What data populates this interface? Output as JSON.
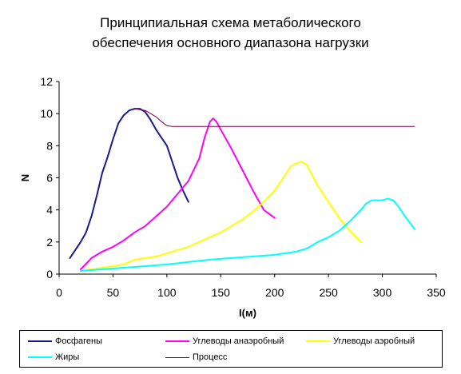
{
  "chart_data": {
    "type": "line",
    "title": [
      "Принципиальная схема метаболического",
      "обеспечения основного диапазона нагрузки"
    ],
    "xlabel": "I(м)",
    "ylabel": "N",
    "xlim": [
      0,
      350
    ],
    "ylim": [
      0,
      12
    ],
    "xticks": [
      0,
      50,
      100,
      150,
      200,
      250,
      300,
      350
    ],
    "yticks": [
      0,
      2,
      4,
      6,
      8,
      10,
      12
    ],
    "grid": false,
    "legend_position": "bottom",
    "series": [
      {
        "name": "Фосфагены",
        "color": "#1A1A8C",
        "width": 2,
        "x": [
          10,
          15,
          20,
          25,
          30,
          35,
          40,
          45,
          50,
          55,
          60,
          65,
          70,
          75,
          80,
          85,
          90,
          95,
          100,
          105,
          110,
          115,
          120
        ],
        "y": [
          1.0,
          1.5,
          2.0,
          2.6,
          3.6,
          4.9,
          6.3,
          7.3,
          8.4,
          9.4,
          9.9,
          10.2,
          10.3,
          10.3,
          10.1,
          9.6,
          9.0,
          8.5,
          8.0,
          7.0,
          6.0,
          5.2,
          4.5
        ]
      },
      {
        "name": "Углеводы анаэробный",
        "color": "#FF00FF",
        "width": 2,
        "x": [
          20,
          30,
          40,
          50,
          60,
          70,
          80,
          90,
          100,
          110,
          120,
          130,
          135,
          140,
          143,
          146,
          150,
          160,
          170,
          180,
          190,
          200
        ],
        "y": [
          0.3,
          1.0,
          1.4,
          1.7,
          2.1,
          2.6,
          3.0,
          3.6,
          4.2,
          5.0,
          5.8,
          7.2,
          8.5,
          9.5,
          9.7,
          9.5,
          9.0,
          7.8,
          6.5,
          5.2,
          4.0,
          3.5
        ]
      },
      {
        "name": "Углеводы аэробный",
        "color": "#FFFF00",
        "width": 2,
        "x": [
          20,
          30,
          40,
          50,
          60,
          70,
          80,
          90,
          100,
          110,
          120,
          130,
          140,
          150,
          160,
          170,
          180,
          190,
          200,
          210,
          215,
          220,
          225,
          230,
          240,
          250,
          260,
          270,
          280
        ],
        "y": [
          0.2,
          0.3,
          0.4,
          0.5,
          0.6,
          0.9,
          1.0,
          1.1,
          1.3,
          1.5,
          1.7,
          2.0,
          2.3,
          2.6,
          3.0,
          3.4,
          3.9,
          4.5,
          5.2,
          6.2,
          6.7,
          6.9,
          7.0,
          6.8,
          5.5,
          4.5,
          3.5,
          2.7,
          2.0
        ]
      },
      {
        "name": "Жиры",
        "color": "#00FFFF",
        "width": 2,
        "x": [
          20,
          40,
          60,
          80,
          100,
          120,
          140,
          160,
          180,
          200,
          220,
          230,
          240,
          250,
          260,
          270,
          280,
          285,
          290,
          295,
          300,
          305,
          310,
          315,
          320,
          330
        ],
        "y": [
          0.2,
          0.3,
          0.4,
          0.5,
          0.6,
          0.75,
          0.9,
          1.0,
          1.1,
          1.2,
          1.4,
          1.6,
          2.0,
          2.3,
          2.7,
          3.3,
          4.0,
          4.4,
          4.6,
          4.6,
          4.6,
          4.7,
          4.6,
          4.2,
          3.7,
          2.8
        ]
      },
      {
        "name": "Процесс",
        "color": "#800040",
        "width": 1,
        "x": [
          70,
          80,
          90,
          95,
          100,
          105,
          330
        ],
        "y": [
          10.3,
          10.2,
          9.8,
          9.5,
          9.25,
          9.2,
          9.2
        ]
      }
    ]
  }
}
